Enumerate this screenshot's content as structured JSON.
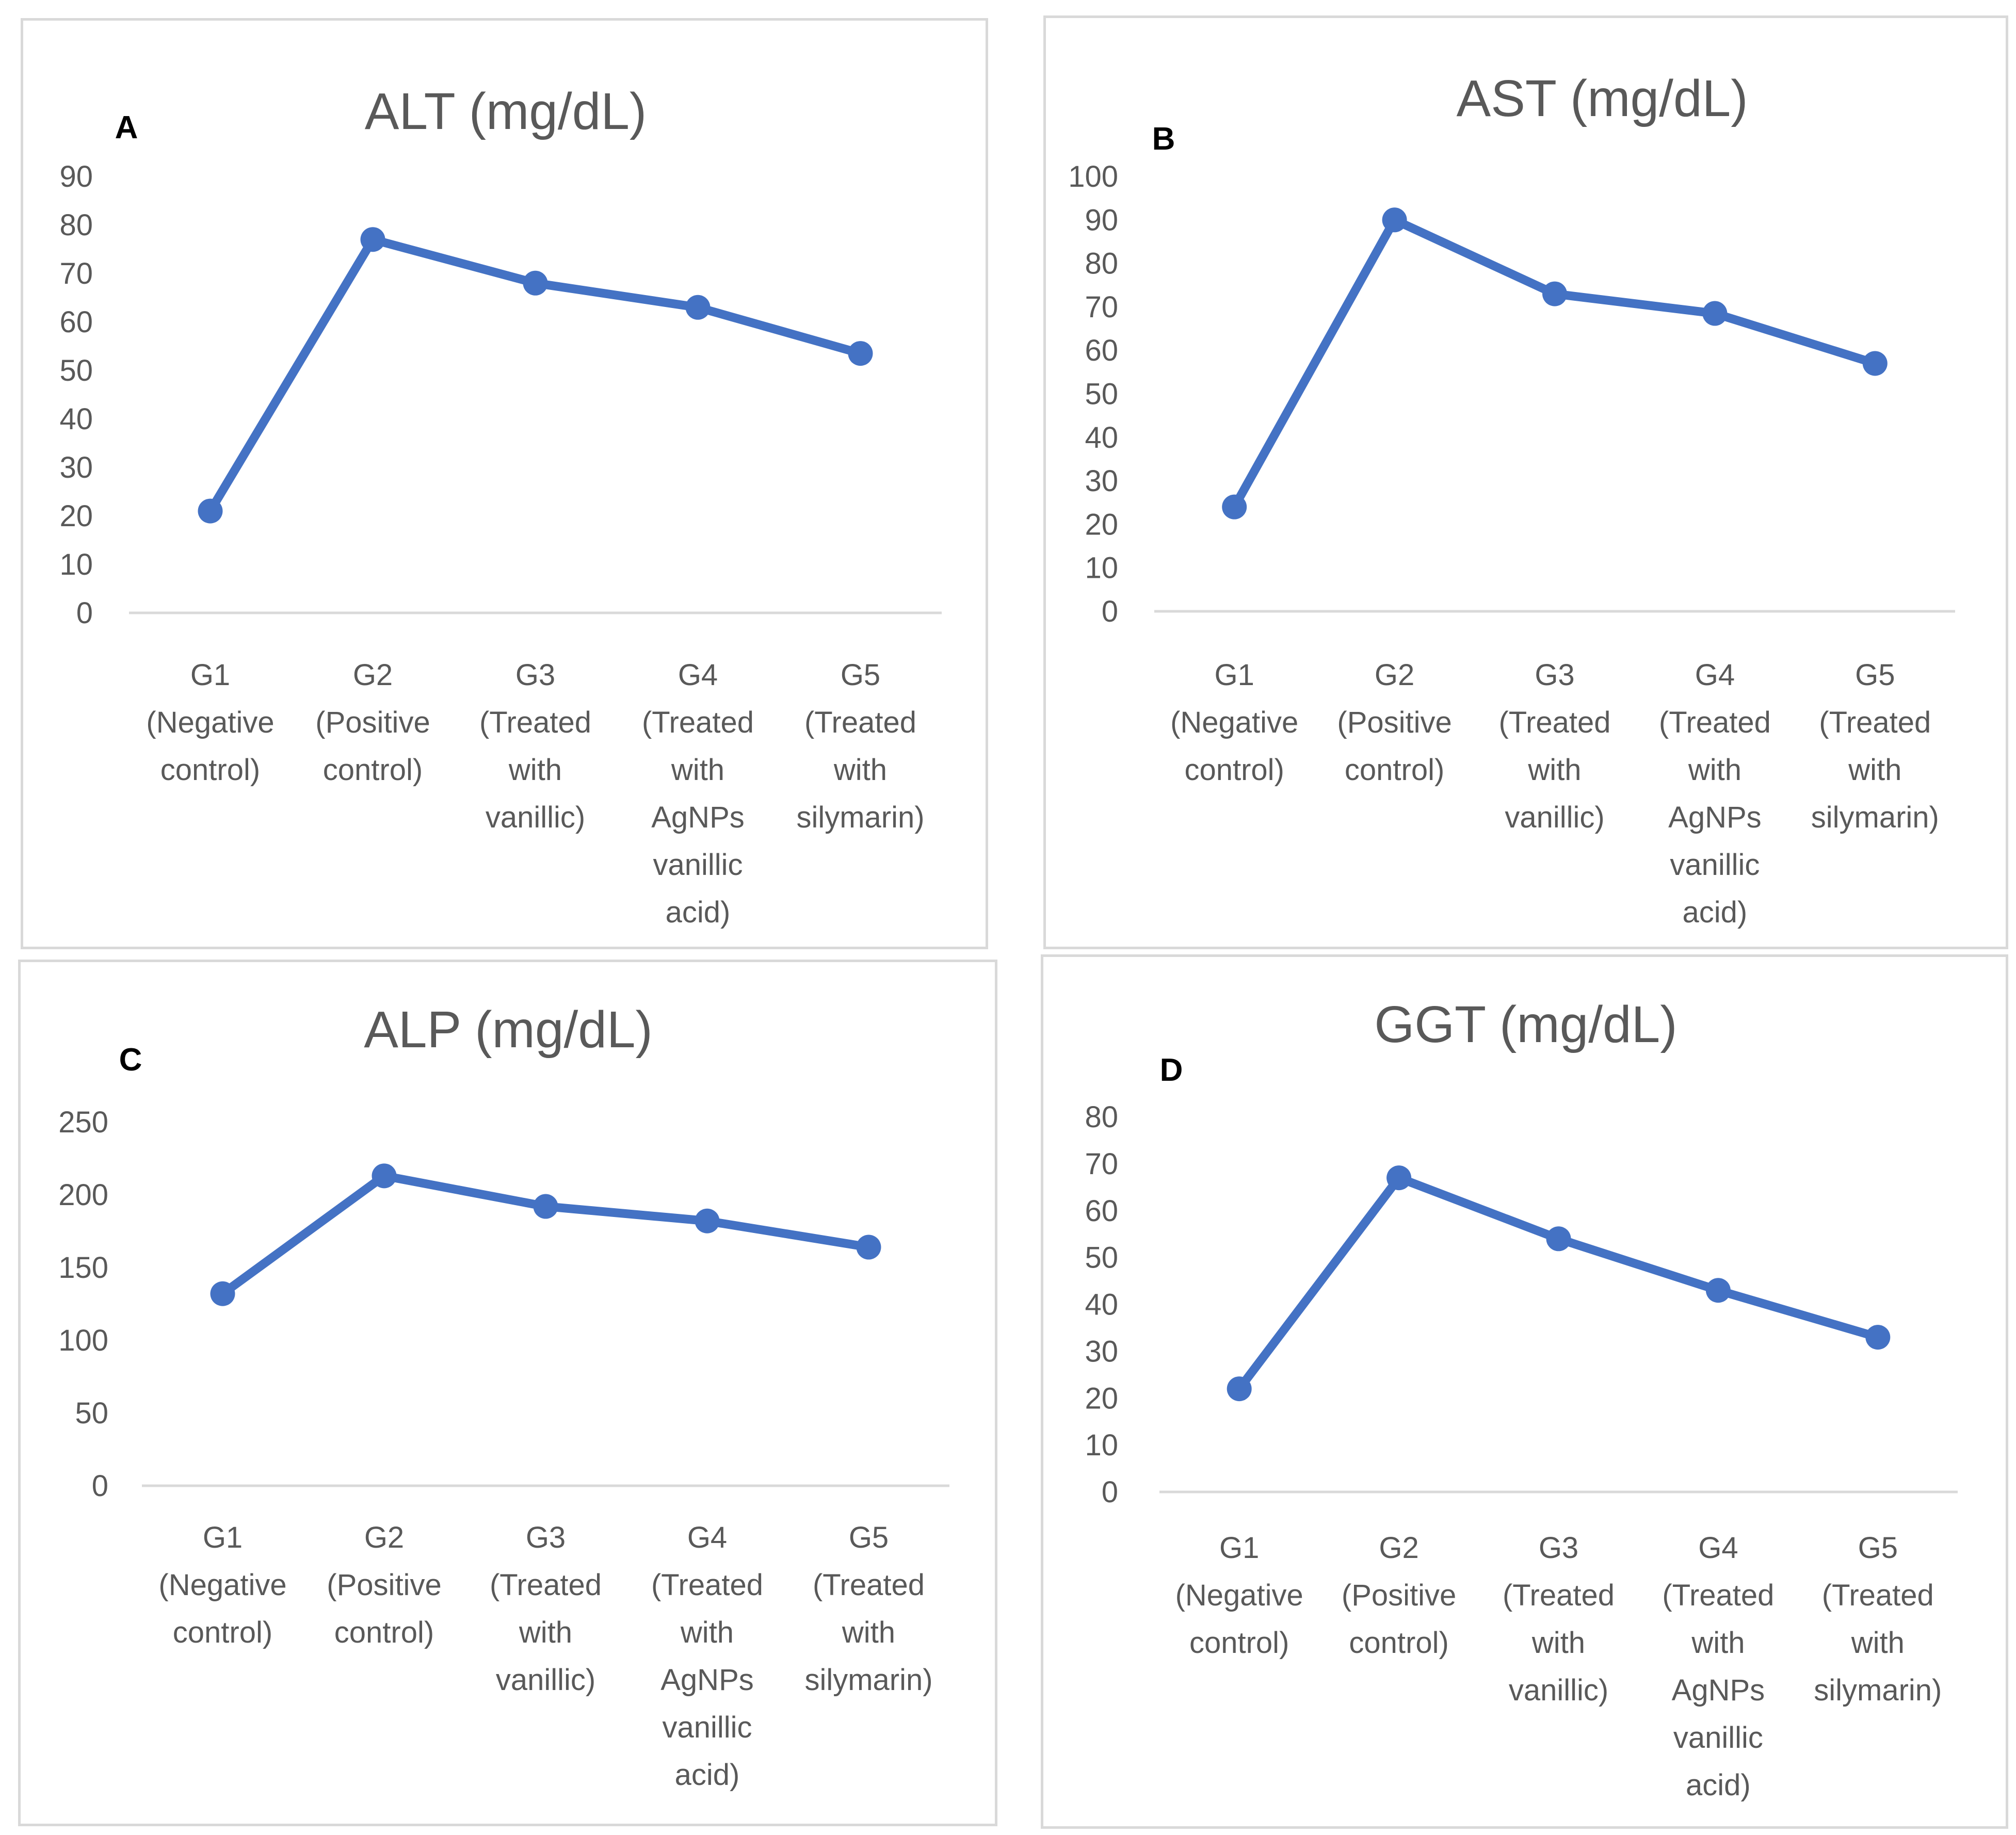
{
  "colors": {
    "series": "#4472c4",
    "text": "#595959",
    "axis": "#d9d9d9",
    "border": "#d9d9d9"
  },
  "chart_data": [
    {
      "id": "a",
      "panel_label": "A",
      "type": "line",
      "title": "ALT (mg/dL)",
      "categories": [
        "G1 (Negative control)",
        "G2 (Positive control)",
        "G3 (Treated with vanillic)",
        "G4 (Treated with AgNPs vanillic acid)",
        "G5 (Treated with silymarin)"
      ],
      "category_lines": [
        [
          "G1",
          "(Negative",
          "control)"
        ],
        [
          "G2",
          "(Positive",
          "control)"
        ],
        [
          "G3",
          "(Treated",
          "with",
          "vanillic)"
        ],
        [
          "G4",
          "(Treated",
          "with",
          "AgNPs",
          "vanillic",
          "acid)"
        ],
        [
          "G5",
          "(Treated",
          "with",
          "silymarin)"
        ]
      ],
      "values": [
        21,
        77,
        68,
        63,
        53.5
      ],
      "ylim": [
        0,
        90
      ],
      "yticks": [
        0,
        10,
        20,
        30,
        40,
        50,
        60,
        70,
        80,
        90
      ],
      "grid": false,
      "xlabel": "",
      "ylabel": ""
    },
    {
      "id": "b",
      "panel_label": "B",
      "type": "line",
      "title": "AST (mg/dL)",
      "categories": [
        "G1 (Negative control)",
        "G2 (Positive control)",
        "G3 (Treated with vanillic)",
        "G4 (Treated with AgNPs vanillic acid)",
        "G5 (Treated with silymarin)"
      ],
      "category_lines": [
        [
          "G1",
          "(Negative",
          "control)"
        ],
        [
          "G2",
          "(Positive",
          "control)"
        ],
        [
          "G3",
          "(Treated",
          "with",
          "vanillic)"
        ],
        [
          "G4",
          "(Treated",
          "with",
          "AgNPs",
          "vanillic",
          "acid)"
        ],
        [
          "G5",
          "(Treated",
          "with",
          "silymarin)"
        ]
      ],
      "values": [
        24,
        90,
        73,
        68.5,
        57
      ],
      "ylim": [
        0,
        100
      ],
      "yticks": [
        0,
        10,
        20,
        30,
        40,
        50,
        60,
        70,
        80,
        90,
        100
      ],
      "grid": false,
      "xlabel": "",
      "ylabel": ""
    },
    {
      "id": "c",
      "panel_label": "C",
      "type": "line",
      "title": "ALP (mg/dL)",
      "categories": [
        "G1 (Negative control)",
        "G2 (Positive control)",
        "G3 (Treated with vanillic)",
        "G4 (Treated with AgNPs vanillic acid)",
        "G5 (Treated with silymarin)"
      ],
      "category_lines": [
        [
          "G1",
          "(Negative",
          "control)"
        ],
        [
          "G2",
          "(Positive",
          "control)"
        ],
        [
          "G3",
          "(Treated",
          "with",
          "vanillic)"
        ],
        [
          "G4",
          "(Treated",
          "with",
          "AgNPs",
          "vanillic",
          "acid)"
        ],
        [
          "G5",
          "(Treated",
          "with",
          "silymarin)"
        ]
      ],
      "values": [
        132,
        213,
        192,
        182,
        164
      ],
      "ylim": [
        0,
        250
      ],
      "yticks": [
        0,
        50,
        100,
        150,
        200,
        250
      ],
      "grid": false,
      "xlabel": "",
      "ylabel": ""
    },
    {
      "id": "d",
      "panel_label": "D",
      "type": "line",
      "title": "GGT (mg/dL)",
      "categories": [
        "G1 (Negative control)",
        "G2 (Positive control)",
        "G3 (Treated with vanillic)",
        "G4 (Treated with AgNPs vanillic acid)",
        "G5 (Treated with silymarin)"
      ],
      "category_lines": [
        [
          "G1",
          "(Negative",
          "control)"
        ],
        [
          "G2",
          "(Positive",
          "control)"
        ],
        [
          "G3",
          "(Treated",
          "with",
          "vanillic)"
        ],
        [
          "G4",
          "(Treated",
          "with",
          "AgNPs",
          "vanillic",
          "acid)"
        ],
        [
          "G5",
          "(Treated",
          "with",
          "silymarin)"
        ]
      ],
      "values": [
        22,
        67,
        54,
        43,
        33
      ],
      "ylim": [
        0,
        80
      ],
      "yticks": [
        0,
        10,
        20,
        30,
        40,
        50,
        60,
        70,
        80
      ],
      "grid": false,
      "xlabel": "",
      "ylabel": ""
    }
  ]
}
